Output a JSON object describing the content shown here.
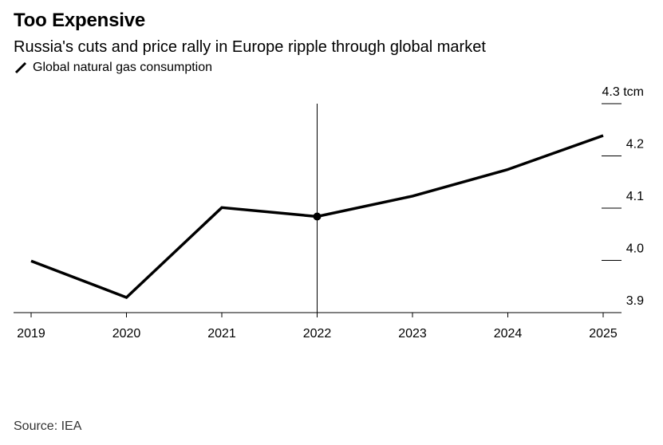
{
  "title": "Too Expensive",
  "subtitle": "Russia's cuts and price rally in Europe ripple through global market",
  "legend": [
    {
      "label": "Global natural gas consumption",
      "color": "#000000"
    }
  ],
  "source": "Source: IEA",
  "chart_data": {
    "type": "line",
    "title": "Too Expensive",
    "subtitle": "Russia's cuts and price rally in Europe ripple through global market",
    "x": [
      2019,
      2020,
      2021,
      2022,
      2023,
      2024,
      2025
    ],
    "x_tick_labels": [
      "2019",
      "2020",
      "2021",
      "2022",
      "2023",
      "2024",
      "2025"
    ],
    "series": [
      {
        "name": "Global natural gas consumption",
        "color": "#000000",
        "values": [
          3.999,
          3.929,
          4.101,
          4.084,
          4.123,
          4.174,
          4.239
        ]
      }
    ],
    "y_tick_values": [
      3.9,
      4.0,
      4.1,
      4.2,
      4.3
    ],
    "y_tick_labels": [
      "3.9",
      "4.0",
      "4.1",
      "4.2",
      "4.3 tcm"
    ],
    "ylim": [
      3.9,
      4.3
    ],
    "xlim": [
      2019,
      2025
    ],
    "y_axis_position": "right",
    "grid": false,
    "marker": {
      "x": 2022,
      "value": 4.084
    },
    "vertical_line_x": 2022,
    "legend_position": "top-left"
  }
}
